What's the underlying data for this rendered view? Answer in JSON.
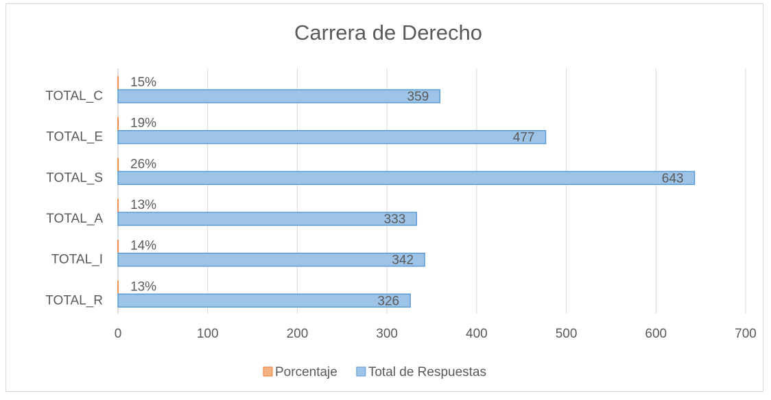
{
  "chart_data": {
    "type": "bar",
    "orientation": "horizontal",
    "title": "Carrera de Derecho",
    "categories": [
      "TOTAL_C",
      "TOTAL_E",
      "TOTAL_S",
      "TOTAL_A",
      "TOTAL_I",
      "TOTAL_R"
    ],
    "series": [
      {
        "name": "Porcentaje",
        "color": "#ed7d31",
        "values": [
          0.15,
          0.19,
          0.26,
          0.13,
          0.14,
          0.13
        ],
        "value_labels": [
          "15%",
          "19%",
          "26%",
          "13%",
          "14%",
          "13%"
        ]
      },
      {
        "name": "Total de Respuestas",
        "color": "#5b9bd5",
        "values": [
          359,
          477,
          643,
          333,
          342,
          326
        ]
      }
    ],
    "xlim": [
      0,
      700
    ],
    "xticks": [
      0,
      100,
      200,
      300,
      400,
      500,
      600,
      700
    ],
    "grid": true,
    "legend": "bottom"
  }
}
